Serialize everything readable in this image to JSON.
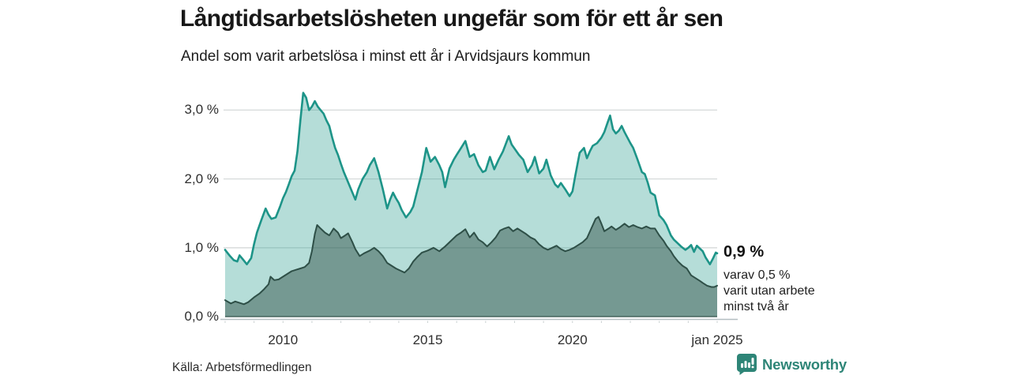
{
  "title": "Långtidsarbetslösheten ungefär som för ett år sen",
  "subtitle": "Andel som varit arbetslösa i minst ett år i Arvidsjaurs kommun",
  "source": "Källa: Arbetsförmedlingen",
  "annotation": {
    "value": "0,9 %",
    "lines": [
      "varav 0,5 %",
      "varit utan arbete",
      "minst två år"
    ]
  },
  "branding": {
    "name": "Newsworthy",
    "icon": "newsworthy-bars-icon",
    "color": "#2E8577"
  },
  "colors": {
    "upper_line": "#1D9488",
    "upper_fill": "rgba(42,157,143,0.35)",
    "lower_line": "#2E4F47",
    "lower_fill": "rgba(40,70,62,0.45)",
    "gridline": "#d6dada",
    "axis_line": "#b4bec1",
    "baseline_edge": "rgba(46,79,71,0.6)",
    "text": "#2f2f2f"
  },
  "chart_data": {
    "type": "area",
    "title": "Långtidsarbetslösheten ungefär som för ett år sen",
    "subtitle": "Andel som varit arbetslösa i minst ett år i Arvidsjaurs kommun",
    "xlabel": "",
    "ylabel": "",
    "unit": "%",
    "grid": "horizontal",
    "legend_position": "none",
    "x_range": [
      2008,
      2025
    ],
    "ylim": [
      0,
      3.3
    ],
    "yticks": [
      {
        "value": 0,
        "label": "0,0 %"
      },
      {
        "value": 1,
        "label": "1,0 %"
      },
      {
        "value": 2,
        "label": "2,0 %"
      },
      {
        "value": 3,
        "label": "3,0 %"
      }
    ],
    "xticks": [
      {
        "year": 2010,
        "label": "2010"
      },
      {
        "year": 2015,
        "label": "2015"
      },
      {
        "year": 2020,
        "label": "2020"
      },
      {
        "year": 2025,
        "label": "jan 2025"
      }
    ],
    "latest": {
      "total": "0,9 %",
      "two_years": "0,5 %"
    },
    "series": [
      {
        "name": "Andel arbetslösa minst ett år",
        "points": [
          [
            2008.0,
            0.97
          ],
          [
            2008.17,
            0.88
          ],
          [
            2008.3,
            0.82
          ],
          [
            2008.42,
            0.8
          ],
          [
            2008.5,
            0.89
          ],
          [
            2008.6,
            0.84
          ],
          [
            2008.75,
            0.76
          ],
          [
            2008.9,
            0.85
          ],
          [
            2009.0,
            1.05
          ],
          [
            2009.1,
            1.22
          ],
          [
            2009.25,
            1.4
          ],
          [
            2009.4,
            1.57
          ],
          [
            2009.5,
            1.48
          ],
          [
            2009.6,
            1.42
          ],
          [
            2009.75,
            1.44
          ],
          [
            2009.9,
            1.6
          ],
          [
            2010.0,
            1.72
          ],
          [
            2010.1,
            1.81
          ],
          [
            2010.2,
            1.92
          ],
          [
            2010.3,
            2.04
          ],
          [
            2010.4,
            2.12
          ],
          [
            2010.5,
            2.4
          ],
          [
            2010.6,
            2.85
          ],
          [
            2010.7,
            3.25
          ],
          [
            2010.8,
            3.18
          ],
          [
            2010.9,
            3.0
          ],
          [
            2011.0,
            3.05
          ],
          [
            2011.1,
            3.13
          ],
          [
            2011.2,
            3.05
          ],
          [
            2011.3,
            3.0
          ],
          [
            2011.4,
            2.95
          ],
          [
            2011.5,
            2.85
          ],
          [
            2011.6,
            2.77
          ],
          [
            2011.7,
            2.6
          ],
          [
            2011.8,
            2.45
          ],
          [
            2011.9,
            2.35
          ],
          [
            2012.0,
            2.22
          ],
          [
            2012.1,
            2.1
          ],
          [
            2012.25,
            1.95
          ],
          [
            2012.4,
            1.8
          ],
          [
            2012.5,
            1.7
          ],
          [
            2012.6,
            1.85
          ],
          [
            2012.75,
            2.0
          ],
          [
            2012.9,
            2.1
          ],
          [
            2013.0,
            2.2
          ],
          [
            2013.15,
            2.3
          ],
          [
            2013.3,
            2.1
          ],
          [
            2013.45,
            1.85
          ],
          [
            2013.6,
            1.57
          ],
          [
            2013.7,
            1.7
          ],
          [
            2013.8,
            1.8
          ],
          [
            2013.9,
            1.72
          ],
          [
            2014.0,
            1.65
          ],
          [
            2014.1,
            1.55
          ],
          [
            2014.25,
            1.44
          ],
          [
            2014.4,
            1.52
          ],
          [
            2014.5,
            1.6
          ],
          [
            2014.65,
            1.85
          ],
          [
            2014.8,
            2.1
          ],
          [
            2014.95,
            2.45
          ],
          [
            2015.1,
            2.25
          ],
          [
            2015.25,
            2.32
          ],
          [
            2015.4,
            2.2
          ],
          [
            2015.5,
            2.1
          ],
          [
            2015.6,
            1.88
          ],
          [
            2015.75,
            2.15
          ],
          [
            2015.9,
            2.28
          ],
          [
            2016.0,
            2.35
          ],
          [
            2016.15,
            2.45
          ],
          [
            2016.3,
            2.55
          ],
          [
            2016.45,
            2.32
          ],
          [
            2016.6,
            2.36
          ],
          [
            2016.75,
            2.2
          ],
          [
            2016.9,
            2.1
          ],
          [
            2017.0,
            2.12
          ],
          [
            2017.15,
            2.32
          ],
          [
            2017.3,
            2.14
          ],
          [
            2017.45,
            2.28
          ],
          [
            2017.6,
            2.4
          ],
          [
            2017.8,
            2.62
          ],
          [
            2017.9,
            2.5
          ],
          [
            2018.0,
            2.44
          ],
          [
            2018.15,
            2.35
          ],
          [
            2018.3,
            2.28
          ],
          [
            2018.45,
            2.1
          ],
          [
            2018.6,
            2.2
          ],
          [
            2018.7,
            2.32
          ],
          [
            2018.85,
            2.08
          ],
          [
            2019.0,
            2.15
          ],
          [
            2019.1,
            2.28
          ],
          [
            2019.25,
            2.05
          ],
          [
            2019.4,
            1.92
          ],
          [
            2019.5,
            1.88
          ],
          [
            2019.6,
            1.94
          ],
          [
            2019.75,
            1.85
          ],
          [
            2019.9,
            1.75
          ],
          [
            2020.0,
            1.82
          ],
          [
            2020.1,
            2.05
          ],
          [
            2020.25,
            2.38
          ],
          [
            2020.4,
            2.45
          ],
          [
            2020.5,
            2.3
          ],
          [
            2020.6,
            2.4
          ],
          [
            2020.7,
            2.48
          ],
          [
            2020.85,
            2.52
          ],
          [
            2021.0,
            2.6
          ],
          [
            2021.1,
            2.68
          ],
          [
            2021.2,
            2.8
          ],
          [
            2021.3,
            2.92
          ],
          [
            2021.4,
            2.72
          ],
          [
            2021.5,
            2.66
          ],
          [
            2021.6,
            2.7
          ],
          [
            2021.7,
            2.77
          ],
          [
            2021.8,
            2.68
          ],
          [
            2021.9,
            2.6
          ],
          [
            2022.0,
            2.52
          ],
          [
            2022.1,
            2.45
          ],
          [
            2022.25,
            2.28
          ],
          [
            2022.4,
            2.1
          ],
          [
            2022.5,
            2.07
          ],
          [
            2022.6,
            1.95
          ],
          [
            2022.7,
            1.8
          ],
          [
            2022.85,
            1.76
          ],
          [
            2023.0,
            1.47
          ],
          [
            2023.15,
            1.4
          ],
          [
            2023.25,
            1.33
          ],
          [
            2023.4,
            1.18
          ],
          [
            2023.5,
            1.12
          ],
          [
            2023.6,
            1.08
          ],
          [
            2023.75,
            1.02
          ],
          [
            2023.9,
            0.97
          ],
          [
            2024.0,
            1.0
          ],
          [
            2024.1,
            1.04
          ],
          [
            2024.2,
            0.94
          ],
          [
            2024.3,
            1.03
          ],
          [
            2024.4,
            0.99
          ],
          [
            2024.5,
            0.95
          ],
          [
            2024.6,
            0.86
          ],
          [
            2024.75,
            0.76
          ],
          [
            2024.85,
            0.84
          ],
          [
            2024.95,
            0.93
          ],
          [
            2025.0,
            0.92
          ]
        ]
      },
      {
        "name": "Varav utan arbete minst två år",
        "points": [
          [
            2008.0,
            0.24
          ],
          [
            2008.2,
            0.19
          ],
          [
            2008.35,
            0.22
          ],
          [
            2008.5,
            0.2
          ],
          [
            2008.65,
            0.18
          ],
          [
            2008.8,
            0.21
          ],
          [
            2009.0,
            0.28
          ],
          [
            2009.2,
            0.34
          ],
          [
            2009.35,
            0.4
          ],
          [
            2009.5,
            0.47
          ],
          [
            2009.57,
            0.58
          ],
          [
            2009.7,
            0.53
          ],
          [
            2009.85,
            0.54
          ],
          [
            2010.0,
            0.58
          ],
          [
            2010.15,
            0.62
          ],
          [
            2010.3,
            0.66
          ],
          [
            2010.45,
            0.68
          ],
          [
            2010.6,
            0.7
          ],
          [
            2010.75,
            0.72
          ],
          [
            2010.9,
            0.78
          ],
          [
            2011.0,
            0.95
          ],
          [
            2011.1,
            1.2
          ],
          [
            2011.18,
            1.33
          ],
          [
            2011.3,
            1.28
          ],
          [
            2011.45,
            1.22
          ],
          [
            2011.6,
            1.18
          ],
          [
            2011.75,
            1.28
          ],
          [
            2011.9,
            1.22
          ],
          [
            2012.0,
            1.14
          ],
          [
            2012.15,
            1.18
          ],
          [
            2012.25,
            1.21
          ],
          [
            2012.4,
            1.08
          ],
          [
            2012.5,
            0.98
          ],
          [
            2012.65,
            0.88
          ],
          [
            2012.8,
            0.92
          ],
          [
            2013.0,
            0.96
          ],
          [
            2013.15,
            1.0
          ],
          [
            2013.3,
            0.95
          ],
          [
            2013.45,
            0.88
          ],
          [
            2013.6,
            0.78
          ],
          [
            2013.75,
            0.74
          ],
          [
            2013.9,
            0.7
          ],
          [
            2014.05,
            0.67
          ],
          [
            2014.2,
            0.64
          ],
          [
            2014.35,
            0.7
          ],
          [
            2014.5,
            0.8
          ],
          [
            2014.65,
            0.87
          ],
          [
            2014.8,
            0.93
          ],
          [
            2015.0,
            0.96
          ],
          [
            2015.2,
            1.0
          ],
          [
            2015.4,
            0.95
          ],
          [
            2015.6,
            1.02
          ],
          [
            2015.8,
            1.1
          ],
          [
            2016.0,
            1.18
          ],
          [
            2016.15,
            1.22
          ],
          [
            2016.3,
            1.27
          ],
          [
            2016.45,
            1.15
          ],
          [
            2016.6,
            1.22
          ],
          [
            2016.75,
            1.12
          ],
          [
            2016.9,
            1.08
          ],
          [
            2017.05,
            1.02
          ],
          [
            2017.2,
            1.08
          ],
          [
            2017.35,
            1.15
          ],
          [
            2017.5,
            1.25
          ],
          [
            2017.65,
            1.28
          ],
          [
            2017.8,
            1.3
          ],
          [
            2017.95,
            1.24
          ],
          [
            2018.1,
            1.28
          ],
          [
            2018.25,
            1.24
          ],
          [
            2018.4,
            1.2
          ],
          [
            2018.55,
            1.15
          ],
          [
            2018.7,
            1.12
          ],
          [
            2018.85,
            1.05
          ],
          [
            2019.0,
            1.0
          ],
          [
            2019.15,
            0.97
          ],
          [
            2019.3,
            1.0
          ],
          [
            2019.45,
            1.03
          ],
          [
            2019.6,
            0.98
          ],
          [
            2019.75,
            0.95
          ],
          [
            2019.9,
            0.97
          ],
          [
            2020.05,
            1.0
          ],
          [
            2020.2,
            1.04
          ],
          [
            2020.35,
            1.08
          ],
          [
            2020.5,
            1.14
          ],
          [
            2020.65,
            1.28
          ],
          [
            2020.8,
            1.42
          ],
          [
            2020.9,
            1.45
          ],
          [
            2021.0,
            1.35
          ],
          [
            2021.1,
            1.24
          ],
          [
            2021.25,
            1.28
          ],
          [
            2021.35,
            1.31
          ],
          [
            2021.5,
            1.26
          ],
          [
            2021.65,
            1.3
          ],
          [
            2021.8,
            1.35
          ],
          [
            2021.95,
            1.3
          ],
          [
            2022.1,
            1.33
          ],
          [
            2022.25,
            1.3
          ],
          [
            2022.4,
            1.28
          ],
          [
            2022.55,
            1.31
          ],
          [
            2022.7,
            1.28
          ],
          [
            2022.85,
            1.28
          ],
          [
            2023.0,
            1.18
          ],
          [
            2023.15,
            1.1
          ],
          [
            2023.25,
            1.03
          ],
          [
            2023.4,
            0.95
          ],
          [
            2023.5,
            0.88
          ],
          [
            2023.65,
            0.8
          ],
          [
            2023.8,
            0.74
          ],
          [
            2023.95,
            0.7
          ],
          [
            2024.1,
            0.6
          ],
          [
            2024.25,
            0.56
          ],
          [
            2024.4,
            0.52
          ],
          [
            2024.5,
            0.49
          ],
          [
            2024.65,
            0.45
          ],
          [
            2024.8,
            0.43
          ],
          [
            2024.9,
            0.43
          ],
          [
            2025.0,
            0.45
          ]
        ]
      }
    ]
  }
}
